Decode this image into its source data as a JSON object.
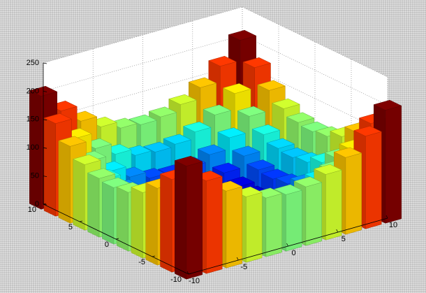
{
  "chart_data": {
    "type": "bar3d",
    "x": [
      -10,
      -8,
      -6,
      -4,
      -2,
      0,
      2,
      4,
      6,
      8,
      10
    ],
    "y": [
      -10,
      -8,
      -6,
      -4,
      -2,
      0,
      2,
      4,
      6,
      8,
      10
    ],
    "z": [
      [
        200,
        164,
        136,
        116,
        104,
        100,
        104,
        116,
        136,
        164,
        200
      ],
      [
        164,
        128,
        100,
        80,
        68,
        64,
        68,
        80,
        100,
        128,
        164
      ],
      [
        136,
        100,
        72,
        52,
        40,
        36,
        40,
        52,
        72,
        100,
        136
      ],
      [
        116,
        80,
        52,
        32,
        20,
        16,
        20,
        32,
        52,
        80,
        116
      ],
      [
        104,
        68,
        40,
        20,
        8,
        4,
        8,
        20,
        40,
        68,
        104
      ],
      [
        100,
        64,
        36,
        16,
        4,
        0,
        4,
        16,
        36,
        64,
        100
      ],
      [
        104,
        68,
        40,
        20,
        8,
        4,
        8,
        20,
        40,
        68,
        104
      ],
      [
        116,
        80,
        52,
        32,
        20,
        16,
        20,
        32,
        52,
        80,
        116
      ],
      [
        136,
        100,
        72,
        52,
        40,
        36,
        40,
        52,
        72,
        100,
        136
      ],
      [
        164,
        128,
        100,
        80,
        68,
        64,
        68,
        80,
        100,
        128,
        164
      ],
      [
        200,
        164,
        136,
        116,
        104,
        100,
        104,
        116,
        136,
        164,
        200
      ]
    ],
    "xlim": [
      -10,
      10
    ],
    "ylim": [
      -10,
      10
    ],
    "zlim": [
      0,
      250
    ],
    "xticks": [
      -10,
      -5,
      0,
      5,
      10
    ],
    "yticks": [
      -10,
      -5,
      0,
      5,
      10
    ],
    "zticks": [
      0,
      50,
      100,
      150,
      200,
      250
    ],
    "colormap": "jet",
    "grid": true,
    "contour": true
  }
}
